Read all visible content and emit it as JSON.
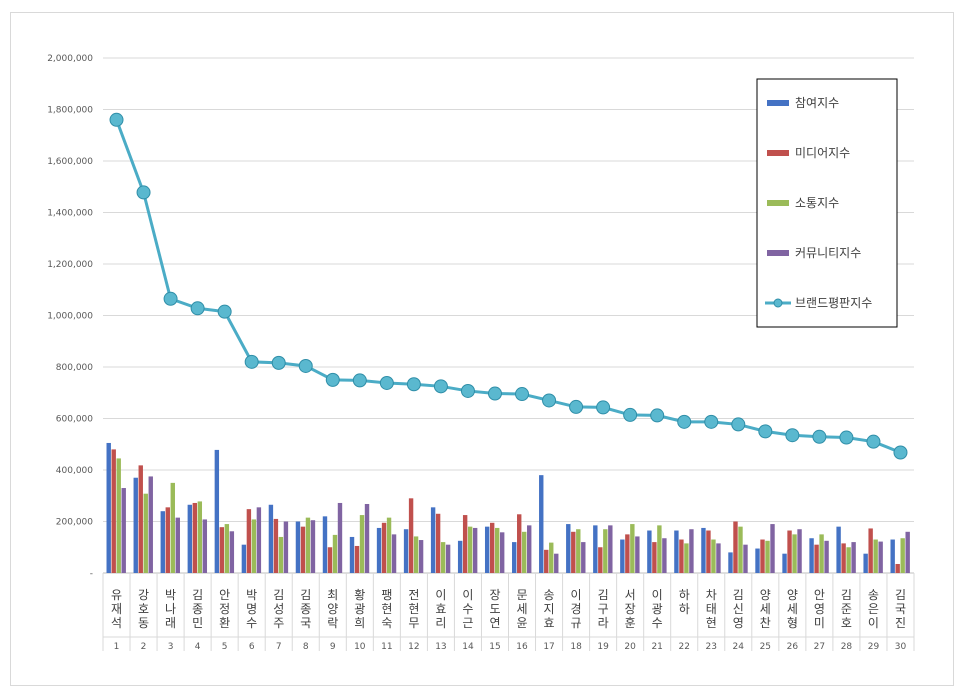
{
  "chart_data": {
    "type": "bar",
    "ylim": [
      0,
      2000000
    ],
    "y_ticks": [
      "-",
      "200,000",
      "400,000",
      "600,000",
      "800,000",
      "1,000,000",
      "1,200,000",
      "1,400,000",
      "1,600,000",
      "1,800,000",
      "2,000,000"
    ],
    "grid": true,
    "legend_position": "right",
    "categories_rank": [
      "1",
      "2",
      "3",
      "4",
      "5",
      "6",
      "7",
      "8",
      "9",
      "10",
      "11",
      "12",
      "13",
      "14",
      "15",
      "16",
      "17",
      "18",
      "19",
      "20",
      "21",
      "22",
      "23",
      "24",
      "25",
      "26",
      "27",
      "28",
      "29",
      "30"
    ],
    "categories_name": [
      "유재석",
      "강호동",
      "박나래",
      "김종민",
      "안정환",
      "박명수",
      "김성주",
      "김종국",
      "최양락",
      "황광희",
      "팽현숙",
      "전현무",
      "이효리",
      "이수근",
      "장도연",
      "문세윤",
      "송지효",
      "이경규",
      "김구라",
      "서장훈",
      "이광수",
      "하하",
      "차태현",
      "김신영",
      "양세찬",
      "양세형",
      "안영미",
      "김준호",
      "송은이",
      "김국진"
    ],
    "series": [
      {
        "name": "참여지수",
        "type": "bar",
        "color": "#4472c4",
        "values": [
          505000,
          370000,
          240000,
          265000,
          478000,
          110000,
          265000,
          200000,
          220000,
          140000,
          175000,
          170000,
          255000,
          125000,
          180000,
          120000,
          380000,
          190000,
          185000,
          130000,
          165000,
          165000,
          175000,
          80000,
          95000,
          75000,
          135000,
          180000,
          75000,
          130000
        ]
      },
      {
        "name": "미디어지수",
        "type": "bar",
        "color": "#c0504d",
        "values": [
          480000,
          418000,
          255000,
          272000,
          178000,
          248000,
          210000,
          180000,
          100000,
          105000,
          195000,
          290000,
          230000,
          225000,
          195000,
          228000,
          90000,
          160000,
          100000,
          150000,
          120000,
          130000,
          165000,
          200000,
          130000,
          165000,
          110000,
          115000,
          173000,
          35000
        ]
      },
      {
        "name": "소통지수",
        "type": "bar",
        "color": "#9bbb59",
        "values": [
          445000,
          308000,
          350000,
          278000,
          190000,
          208000,
          140000,
          215000,
          148000,
          225000,
          215000,
          142000,
          120000,
          180000,
          175000,
          160000,
          118000,
          170000,
          170000,
          190000,
          185000,
          115000,
          130000,
          180000,
          125000,
          150000,
          150000,
          100000,
          130000,
          135000
        ]
      },
      {
        "name": "커뮤니티지수",
        "type": "bar",
        "color": "#8064a2",
        "values": [
          330000,
          375000,
          215000,
          208000,
          162000,
          255000,
          200000,
          205000,
          272000,
          268000,
          150000,
          128000,
          110000,
          175000,
          158000,
          185000,
          75000,
          120000,
          185000,
          142000,
          135000,
          170000,
          115000,
          110000,
          190000,
          170000,
          125000,
          120000,
          122000,
          160000
        ]
      },
      {
        "name": "브랜드평판지수",
        "type": "line",
        "color": "#4bacc6",
        "values": [
          1760000,
          1478000,
          1065000,
          1028000,
          1015000,
          820000,
          816000,
          804000,
          750000,
          748000,
          738000,
          733000,
          725000,
          707000,
          697000,
          695000,
          670000,
          645000,
          643000,
          614000,
          612000,
          587000,
          587000,
          577000,
          550000,
          535000,
          529000,
          526000,
          510000,
          468000
        ]
      }
    ]
  }
}
